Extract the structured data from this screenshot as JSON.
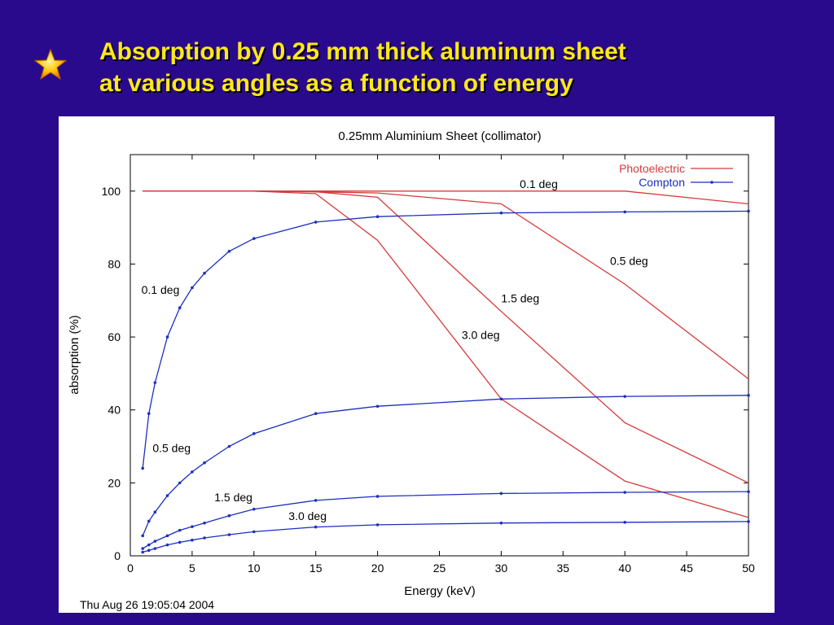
{
  "slide": {
    "title_line1": "Absorption by 0.25 mm thick aluminum sheet",
    "title_line2": "at various angles as a function of energy",
    "bullet_icon": "star-icon",
    "title_color": "#ffe81a",
    "background_color": "#2a0a8c"
  },
  "chart_data": {
    "type": "line",
    "title": "0.25mm Aluminium Sheet (collimator)",
    "xlabel": "Energy (keV)",
    "ylabel": "absorption (%)",
    "xlim": [
      0,
      50
    ],
    "ylim": [
      0,
      110
    ],
    "xticks": [
      0,
      5,
      10,
      15,
      20,
      25,
      30,
      35,
      40,
      45,
      50
    ],
    "yticks": [
      0,
      20,
      40,
      60,
      80,
      100
    ],
    "grid": false,
    "legend_position": "top-right",
    "legend": [
      {
        "label": "Photoelectric",
        "color": "#d63a3a",
        "marker": "none"
      },
      {
        "label": "Compton",
        "color": "#1c2fc0",
        "marker": "dot"
      }
    ],
    "timestamp": "Thu Aug 26 19:05:04 2004",
    "series": [
      {
        "group": "Photoelectric",
        "color": "#d63a3a",
        "x": [
          1,
          10,
          20,
          30,
          40,
          50
        ],
        "y": [
          100,
          100,
          100,
          100,
          100,
          96.5
        ]
      },
      {
        "group": "Photoelectric",
        "color": "#d63a3a",
        "x": [
          1,
          10,
          15,
          20,
          30,
          40,
          50
        ],
        "y": [
          100,
          100,
          99.8,
          99.5,
          96.5,
          74.5,
          48.5
        ]
      },
      {
        "group": "Photoelectric",
        "color": "#d63a3a",
        "x": [
          1,
          10,
          15,
          20,
          30,
          40,
          50
        ],
        "y": [
          100,
          100,
          99.8,
          98.3,
          67,
          36.5,
          20
        ]
      },
      {
        "group": "Photoelectric",
        "color": "#d63a3a",
        "x": [
          1,
          10,
          15,
          20,
          30,
          40,
          50
        ],
        "y": [
          100,
          100,
          99.3,
          86.5,
          43,
          20.5,
          10.5
        ]
      },
      {
        "group": "Compton",
        "color": "#1c2fc0",
        "x": [
          1,
          1.5,
          2,
          3,
          4,
          5,
          6,
          8,
          10,
          15,
          20,
          30,
          40,
          50
        ],
        "y": [
          24,
          39,
          47.5,
          60,
          68,
          73.5,
          77.5,
          83.5,
          87,
          91.5,
          93,
          94,
          94.3,
          94.5
        ]
      },
      {
        "group": "Compton",
        "color": "#1c2fc0",
        "x": [
          1,
          1.5,
          2,
          3,
          4,
          5,
          6,
          8,
          10,
          15,
          20,
          30,
          40,
          50
        ],
        "y": [
          5.5,
          9.5,
          12,
          16.5,
          20,
          23,
          25.5,
          30,
          33.5,
          39,
          41,
          43,
          43.7,
          44
        ]
      },
      {
        "group": "Compton",
        "color": "#1c2fc0",
        "x": [
          1,
          1.5,
          2,
          3,
          4,
          5,
          6,
          8,
          10,
          15,
          20,
          30,
          40,
          50
        ],
        "y": [
          2,
          3,
          4,
          5.5,
          7,
          8,
          9,
          11,
          12.8,
          15.2,
          16.3,
          17.1,
          17.4,
          17.6
        ]
      },
      {
        "group": "Compton",
        "color": "#1c2fc0",
        "x": [
          1,
          1.5,
          2,
          3,
          4,
          5,
          6,
          8,
          10,
          15,
          20,
          30,
          40,
          50
        ],
        "y": [
          1,
          1.5,
          2,
          3,
          3.7,
          4.3,
          4.9,
          5.8,
          6.6,
          7.9,
          8.5,
          9,
          9.2,
          9.4
        ]
      }
    ],
    "annotations": [
      {
        "text": "0.1 deg",
        "x": 31.5,
        "y": 100.8
      },
      {
        "text": "0.5 deg",
        "x": 38.8,
        "y": 79.8
      },
      {
        "text": "1.5 deg",
        "x": 30,
        "y": 69.5
      },
      {
        "text": "3.0 deg",
        "x": 26.8,
        "y": 59.5
      },
      {
        "text": "0.1 deg",
        "x": 0.9,
        "y": 71.8
      },
      {
        "text": "0.5 deg",
        "x": 1.8,
        "y": 28.5
      },
      {
        "text": "1.5 deg",
        "x": 6.8,
        "y": 14.9
      },
      {
        "text": "3.0 deg",
        "x": 12.8,
        "y": 9.8
      }
    ]
  }
}
